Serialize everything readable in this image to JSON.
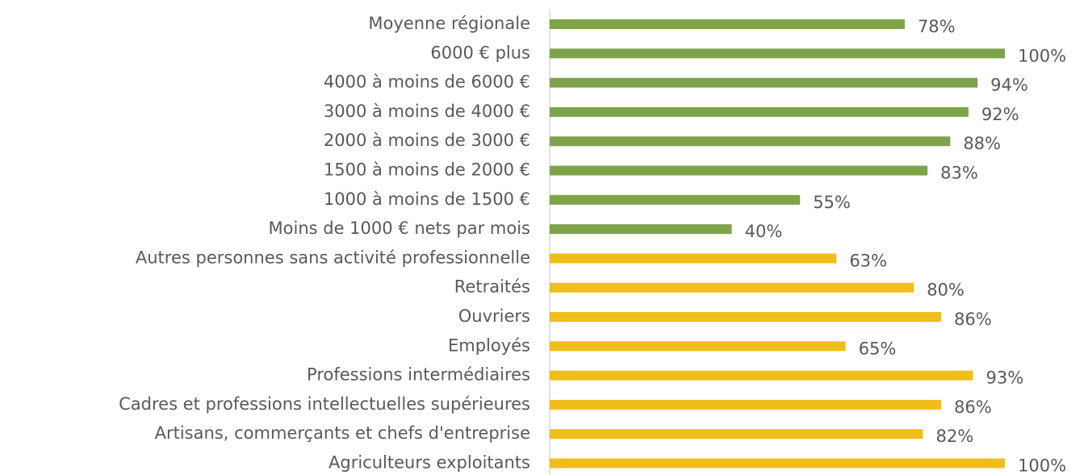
{
  "chart_data": {
    "type": "bar",
    "orientation": "horizontal",
    "categories": [
      "Moyenne régionale",
      "6000 € plus",
      "4000 à moins de 6000 €",
      "3000 à moins de 4000 €",
      "2000 à moins de 3000 €",
      "1500 à moins de 2000 €",
      "1000 à moins de 1500 €",
      "Moins de 1000 € nets par mois",
      "Autres personnes sans activité professionnelle",
      "Retraités",
      "Ouvriers",
      "Employés",
      "Professions intermédiaires",
      "Cadres et professions intellectuelles supérieures",
      "Artisans, commerçants et chefs d'entreprise",
      "Agriculteurs exploitants"
    ],
    "values": [
      78,
      100,
      94,
      92,
      88,
      83,
      55,
      40,
      63,
      80,
      86,
      65,
      93,
      86,
      82,
      100
    ],
    "value_labels": [
      "78%",
      "100%",
      "94%",
      "92%",
      "88%",
      "83%",
      "55%",
      "40%",
      "63%",
      "80%",
      "86%",
      "65%",
      "93%",
      "86%",
      "82%",
      "100%"
    ],
    "colors": [
      "#7fa34a",
      "#7fa34a",
      "#7fa34a",
      "#7fa34a",
      "#7fa34a",
      "#7fa34a",
      "#7fa34a",
      "#7fa34a",
      "#f0be1a",
      "#f0be1a",
      "#f0be1a",
      "#f0be1a",
      "#f0be1a",
      "#f0be1a",
      "#f0be1a",
      "#f0be1a"
    ],
    "xlim": [
      0,
      100
    ]
  }
}
